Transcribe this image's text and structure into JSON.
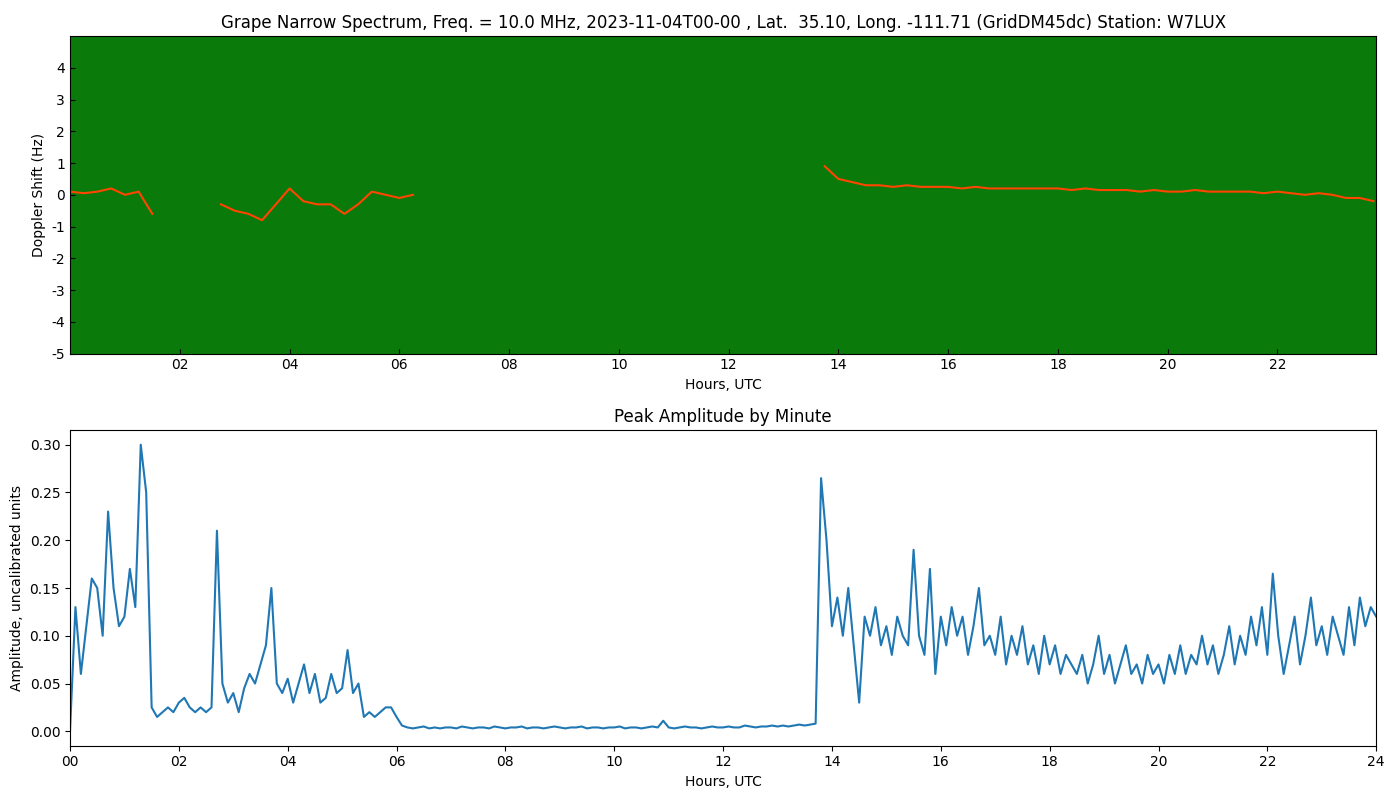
{
  "chart_data": [
    {
      "type": "line",
      "title": "Grape Narrow Spectrum, Freq. = 10.0 MHz, 2023-11-04T00-00 , Lat.  35.10, Long. -111.71 (GridDM45dc) Station: W7LUX",
      "x_label": "Hours, UTC",
      "y_label": "Doppler Shift (Hz)",
      "x": [
        0.0,
        0.25,
        0.5,
        0.75,
        1.0,
        1.25,
        1.5,
        1.75,
        2.0,
        2.25,
        2.5,
        2.75,
        3.0,
        3.25,
        3.5,
        3.75,
        4.0,
        4.25,
        4.5,
        4.75,
        5.0,
        5.25,
        5.5,
        5.75,
        6.0,
        6.25,
        6.5,
        6.75,
        7.0,
        7.25,
        7.5,
        7.75,
        8.0,
        8.25,
        8.5,
        8.75,
        9.0,
        9.25,
        9.5,
        9.75,
        10.0,
        10.25,
        10.5,
        10.75,
        11.0,
        11.25,
        11.5,
        11.75,
        12.0,
        12.25,
        12.5,
        12.75,
        13.0,
        13.25,
        13.5,
        13.75,
        14.0,
        14.25,
        14.5,
        14.75,
        15.0,
        15.25,
        15.5,
        15.75,
        16.0,
        16.25,
        16.5,
        16.75,
        17.0,
        17.25,
        17.5,
        17.75,
        18.0,
        18.25,
        18.5,
        18.75,
        19.0,
        19.25,
        19.5,
        19.75,
        20.0,
        20.25,
        20.5,
        20.75,
        21.0,
        21.25,
        21.5,
        21.75,
        22.0,
        22.25,
        22.5,
        22.75,
        23.0,
        23.25,
        23.5,
        23.75
      ],
      "values": [
        0.1,
        0.05,
        0.1,
        0.2,
        0.0,
        0.1,
        -0.6,
        null,
        null,
        null,
        null,
        -0.3,
        -0.5,
        -0.6,
        -0.8,
        -0.3,
        0.2,
        -0.2,
        -0.3,
        -0.3,
        -0.6,
        -0.3,
        0.1,
        0.0,
        -0.1,
        0.0,
        null,
        null,
        null,
        null,
        null,
        null,
        null,
        null,
        null,
        null,
        null,
        null,
        null,
        null,
        null,
        null,
        null,
        null,
        null,
        null,
        null,
        null,
        null,
        null,
        null,
        null,
        null,
        null,
        null,
        0.9,
        0.5,
        0.4,
        0.3,
        0.3,
        0.25,
        0.3,
        0.25,
        0.25,
        0.25,
        0.2,
        0.25,
        0.2,
        0.2,
        0.2,
        0.2,
        0.2,
        0.2,
        0.15,
        0.2,
        0.15,
        0.15,
        0.15,
        0.1,
        0.15,
        0.1,
        0.1,
        0.15,
        0.1,
        0.1,
        0.1,
        0.1,
        0.05,
        0.1,
        0.05,
        0.0,
        0.05,
        0.0,
        -0.1,
        -0.1,
        -0.2
      ],
      "color": "#ff4500",
      "xlim": [
        0,
        23.8
      ],
      "xticks": [
        {
          "value": 2,
          "label": "02"
        },
        {
          "value": 4,
          "label": "04"
        },
        {
          "value": 6,
          "label": "06"
        },
        {
          "value": 8,
          "label": "08"
        },
        {
          "value": 10,
          "label": "10"
        },
        {
          "value": 12,
          "label": "12"
        },
        {
          "value": 14,
          "label": "14"
        },
        {
          "value": 16,
          "label": "16"
        },
        {
          "value": 18,
          "label": "18"
        },
        {
          "value": 20,
          "label": "20"
        },
        {
          "value": 22,
          "label": "22"
        }
      ],
      "ylim": [
        -5,
        5
      ],
      "yticks": [
        -5,
        -4,
        -3,
        -2,
        -1,
        0,
        1,
        2,
        3,
        4
      ],
      "grid": false
    },
    {
      "type": "line",
      "title": "Peak Amplitude by Minute",
      "x_label": "Hours, UTC",
      "y_label": "Amplitude, uncalibrated units",
      "x": [
        0.0,
        0.1,
        0.2,
        0.3,
        0.4,
        0.5,
        0.6,
        0.7,
        0.8,
        0.9,
        1.0,
        1.1,
        1.2,
        1.3,
        1.4,
        1.5,
        1.6,
        1.7,
        1.8,
        1.9,
        2.0,
        2.1,
        2.2,
        2.3,
        2.4,
        2.5,
        2.6,
        2.7,
        2.8,
        2.9,
        3.0,
        3.1,
        3.2,
        3.3,
        3.4,
        3.5,
        3.6,
        3.7,
        3.8,
        3.9,
        4.0,
        4.1,
        4.2,
        4.3,
        4.4,
        4.5,
        4.6,
        4.7,
        4.8,
        4.9,
        5.0,
        5.1,
        5.2,
        5.3,
        5.4,
        5.5,
        5.6,
        5.7,
        5.8,
        5.9,
        6.0,
        6.1,
        6.2,
        6.3,
        6.4,
        6.5,
        6.6,
        6.7,
        6.8,
        6.9,
        7.0,
        7.1,
        7.2,
        7.3,
        7.4,
        7.5,
        7.6,
        7.7,
        7.8,
        7.9,
        8.0,
        8.1,
        8.2,
        8.3,
        8.4,
        8.5,
        8.6,
        8.7,
        8.8,
        8.9,
        9.0,
        9.1,
        9.2,
        9.3,
        9.4,
        9.5,
        9.6,
        9.7,
        9.8,
        9.9,
        10.0,
        10.1,
        10.2,
        10.3,
        10.4,
        10.5,
        10.6,
        10.7,
        10.8,
        10.9,
        11.0,
        11.1,
        11.2,
        11.3,
        11.4,
        11.5,
        11.6,
        11.7,
        11.8,
        11.9,
        12.0,
        12.1,
        12.2,
        12.3,
        12.4,
        12.5,
        12.6,
        12.7,
        12.8,
        12.9,
        13.0,
        13.1,
        13.2,
        13.3,
        13.4,
        13.5,
        13.6,
        13.7,
        13.8,
        13.9,
        14.0,
        14.1,
        14.2,
        14.3,
        14.4,
        14.5,
        14.6,
        14.7,
        14.8,
        14.9,
        15.0,
        15.1,
        15.2,
        15.3,
        15.4,
        15.5,
        15.6,
        15.7,
        15.8,
        15.9,
        16.0,
        16.1,
        16.2,
        16.3,
        16.4,
        16.5,
        16.6,
        16.7,
        16.8,
        16.9,
        17.0,
        17.1,
        17.2,
        17.3,
        17.4,
        17.5,
        17.6,
        17.7,
        17.8,
        17.9,
        18.0,
        18.1,
        18.2,
        18.3,
        18.4,
        18.5,
        18.6,
        18.7,
        18.8,
        18.9,
        19.0,
        19.1,
        19.2,
        19.3,
        19.4,
        19.5,
        19.6,
        19.7,
        19.8,
        19.9,
        20.0,
        20.1,
        20.2,
        20.3,
        20.4,
        20.5,
        20.6,
        20.7,
        20.8,
        20.9,
        21.0,
        21.1,
        21.2,
        21.3,
        21.4,
        21.5,
        21.6,
        21.7,
        21.8,
        21.9,
        22.0,
        22.1,
        22.2,
        22.3,
        22.4,
        22.5,
        22.6,
        22.7,
        22.8,
        22.9,
        23.0,
        23.1,
        23.2,
        23.3,
        23.4,
        23.5,
        23.6,
        23.7,
        23.8,
        23.9,
        24.0
      ],
      "values": [
        0.0,
        0.13,
        0.06,
        0.11,
        0.16,
        0.15,
        0.1,
        0.23,
        0.15,
        0.11,
        0.12,
        0.17,
        0.13,
        0.3,
        0.25,
        0.025,
        0.015,
        0.02,
        0.025,
        0.02,
        0.03,
        0.035,
        0.025,
        0.02,
        0.025,
        0.02,
        0.025,
        0.21,
        0.05,
        0.03,
        0.04,
        0.02,
        0.045,
        0.06,
        0.05,
        0.07,
        0.09,
        0.15,
        0.05,
        0.04,
        0.055,
        0.03,
        0.05,
        0.07,
        0.04,
        0.06,
        0.03,
        0.035,
        0.06,
        0.04,
        0.045,
        0.085,
        0.04,
        0.05,
        0.015,
        0.02,
        0.015,
        0.02,
        0.025,
        0.025,
        0.015,
        0.006,
        0.004,
        0.003,
        0.004,
        0.005,
        0.003,
        0.004,
        0.003,
        0.004,
        0.004,
        0.003,
        0.005,
        0.004,
        0.003,
        0.004,
        0.004,
        0.003,
        0.005,
        0.004,
        0.003,
        0.004,
        0.004,
        0.005,
        0.003,
        0.004,
        0.004,
        0.003,
        0.004,
        0.005,
        0.004,
        0.003,
        0.004,
        0.004,
        0.005,
        0.003,
        0.004,
        0.004,
        0.003,
        0.004,
        0.004,
        0.005,
        0.003,
        0.004,
        0.004,
        0.003,
        0.004,
        0.005,
        0.004,
        0.011,
        0.004,
        0.003,
        0.004,
        0.005,
        0.004,
        0.004,
        0.003,
        0.004,
        0.005,
        0.004,
        0.004,
        0.005,
        0.004,
        0.004,
        0.006,
        0.005,
        0.004,
        0.005,
        0.005,
        0.006,
        0.005,
        0.006,
        0.005,
        0.006,
        0.007,
        0.006,
        0.007,
        0.008,
        0.265,
        0.2,
        0.11,
        0.14,
        0.1,
        0.15,
        0.09,
        0.03,
        0.12,
        0.1,
        0.13,
        0.09,
        0.11,
        0.08,
        0.12,
        0.1,
        0.09,
        0.19,
        0.1,
        0.08,
        0.17,
        0.06,
        0.12,
        0.09,
        0.13,
        0.1,
        0.12,
        0.08,
        0.11,
        0.15,
        0.09,
        0.1,
        0.08,
        0.12,
        0.07,
        0.1,
        0.08,
        0.11,
        0.07,
        0.09,
        0.06,
        0.1,
        0.07,
        0.09,
        0.06,
        0.08,
        0.07,
        0.06,
        0.08,
        0.05,
        0.07,
        0.1,
        0.06,
        0.08,
        0.05,
        0.07,
        0.09,
        0.06,
        0.07,
        0.05,
        0.08,
        0.06,
        0.07,
        0.05,
        0.08,
        0.06,
        0.09,
        0.06,
        0.08,
        0.07,
        0.1,
        0.07,
        0.09,
        0.06,
        0.08,
        0.11,
        0.07,
        0.1,
        0.08,
        0.12,
        0.09,
        0.13,
        0.08,
        0.165,
        0.1,
        0.06,
        0.09,
        0.12,
        0.07,
        0.1,
        0.14,
        0.09,
        0.11,
        0.08,
        0.12,
        0.1,
        0.08,
        0.13,
        0.09,
        0.14,
        0.11,
        0.13,
        0.12
      ],
      "color": "#1f77b4",
      "xlim": [
        0,
        24
      ],
      "xticks": [
        {
          "value": 0,
          "label": "00"
        },
        {
          "value": 2,
          "label": "02"
        },
        {
          "value": 4,
          "label": "04"
        },
        {
          "value": 6,
          "label": "06"
        },
        {
          "value": 8,
          "label": "08"
        },
        {
          "value": 10,
          "label": "10"
        },
        {
          "value": 12,
          "label": "12"
        },
        {
          "value": 14,
          "label": "14"
        },
        {
          "value": 16,
          "label": "16"
        },
        {
          "value": 18,
          "label": "18"
        },
        {
          "value": 20,
          "label": "20"
        },
        {
          "value": 22,
          "label": "22"
        },
        {
          "value": 24,
          "label": "24"
        }
      ],
      "ylim": [
        -0.015,
        0.315
      ],
      "yticks": [
        {
          "value": 0.0,
          "label": "0.00"
        },
        {
          "value": 0.05,
          "label": "0.05"
        },
        {
          "value": 0.1,
          "label": "0.10"
        },
        {
          "value": 0.15,
          "label": "0.15"
        },
        {
          "value": 0.2,
          "label": "0.20"
        },
        {
          "value": 0.25,
          "label": "0.25"
        },
        {
          "value": 0.3,
          "label": "0.30"
        }
      ],
      "grid": false
    }
  ]
}
